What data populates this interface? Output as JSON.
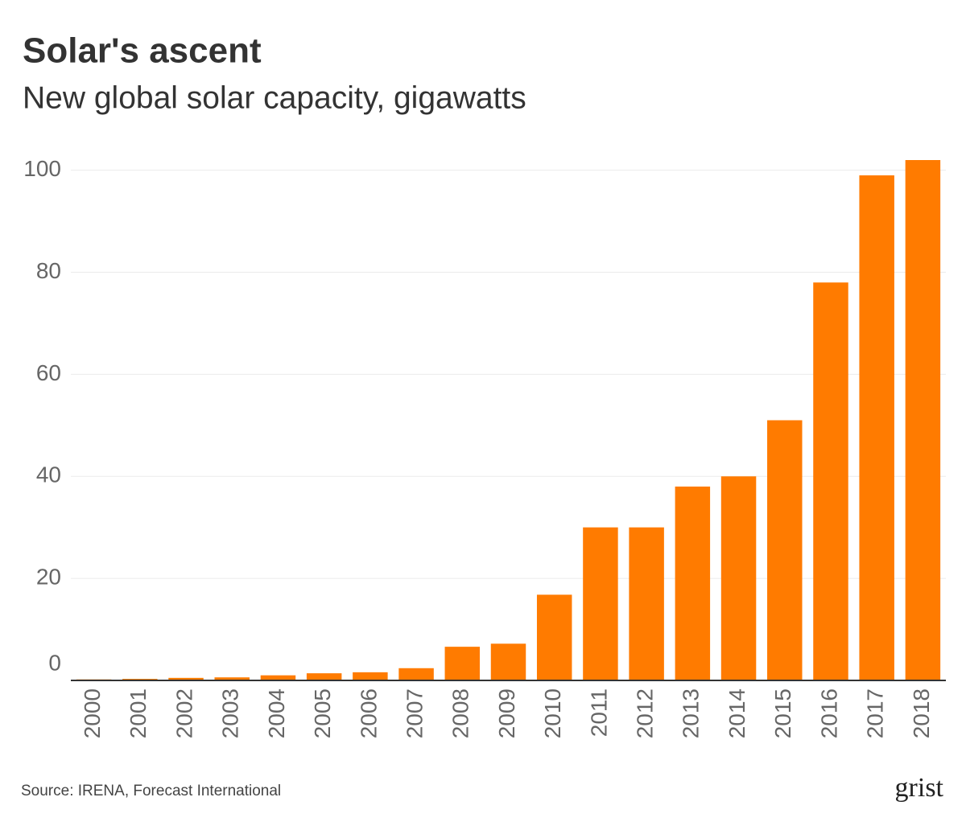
{
  "chart_data": {
    "type": "bar",
    "title": "Solar's ascent",
    "subtitle": "New global solar capacity, gigawatts",
    "categories": [
      "2000",
      "2001",
      "2002",
      "2003",
      "2004",
      "2005",
      "2006",
      "2007",
      "2008",
      "2009",
      "2010",
      "2011",
      "2012",
      "2013",
      "2014",
      "2015",
      "2016",
      "2017",
      "2018"
    ],
    "values": [
      0.2,
      0.3,
      0.5,
      0.6,
      1.0,
      1.4,
      1.6,
      2.4,
      6.6,
      7.2,
      16.8,
      30,
      30,
      38,
      40,
      51,
      78,
      99,
      102
    ],
    "color": "#ff7b00",
    "ylim": [
      0,
      102
    ],
    "yticks": [
      0,
      20,
      40,
      60,
      80,
      100
    ],
    "grid": true,
    "source": "Source: IRENA, Forecast International",
    "logo": "grist"
  }
}
